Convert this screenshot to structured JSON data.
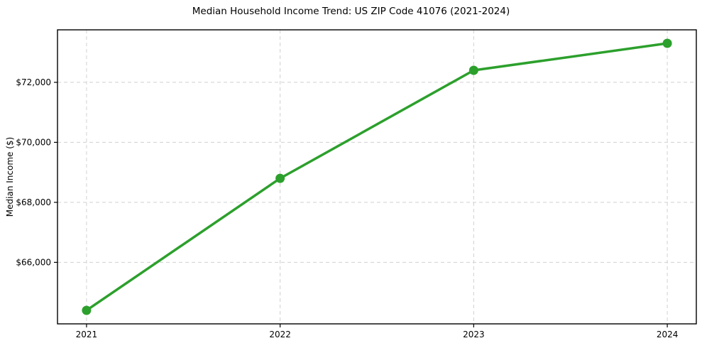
{
  "chart_data": {
    "type": "line",
    "title": "Median Household Income Trend: US ZIP Code 41076 (2021-2024)",
    "xlabel": "",
    "ylabel": "Median Income ($)",
    "x": [
      2021,
      2022,
      2023,
      2024
    ],
    "categories": [
      "2021",
      "2022",
      "2023",
      "2024"
    ],
    "series": [
      {
        "name": "Median Household Income",
        "values": [
          64400,
          68800,
          72400,
          73300
        ]
      }
    ],
    "xlim": [
      2020.85,
      2024.15
    ],
    "ylim": [
      63950,
      73750
    ],
    "xticks": [
      2021,
      2022,
      2023,
      2024
    ],
    "xtick_labels": [
      "2021",
      "2022",
      "2023",
      "2024"
    ],
    "yticks": [
      66000,
      68000,
      70000,
      72000
    ],
    "ytick_labels": [
      "$66,000",
      "$68,000",
      "$70,000",
      "$72,000"
    ],
    "grid": true,
    "grid_style": "dashed",
    "legend_position": "none",
    "colors": {
      "line": "#2ca02c",
      "marker": "#2ca02c",
      "grid": "#d0d0d0",
      "frame": "#000000",
      "background": "#ffffff",
      "text": "#000000"
    },
    "line_width": 3.5,
    "marker": "circle",
    "marker_diameter": 13
  }
}
